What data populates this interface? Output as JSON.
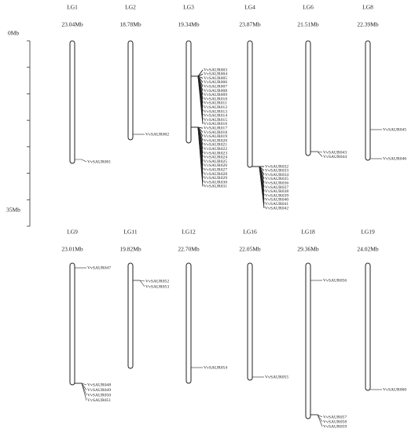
{
  "scale": {
    "top": "0Mb",
    "bottom": "35Mb"
  },
  "chromosomes": [
    {
      "name": "LG1",
      "length": "23.04Mb",
      "genes": [
        "VvSAUR001"
      ]
    },
    {
      "name": "LG2",
      "length": "18.78Mb",
      "genes": [
        "VvSAUR002"
      ]
    },
    {
      "name": "LG3",
      "length": "19.34Mb",
      "genes": [
        "VvSAUR003",
        "VvSAUR004",
        "VvSAUR005",
        "VvSAUR006",
        "VvSAUR007",
        "VvSAUR008",
        "VvSAUR009",
        "VvSAUR010",
        "VvSAUR011",
        "VvSAUR012",
        "VvSAUR013",
        "VvSAUR014",
        "VvSAUR015",
        "VvSAUR016",
        "VvSAUR017",
        "VvSAUR018",
        "VvSAUR019",
        "VvSAUR020",
        "VvSAUR021",
        "VvSAUR022",
        "VvSAUR023",
        "VvSAUR024",
        "VvSAUR025",
        "VvSAUR026",
        "VvSAUR027",
        "VvSAUR028",
        "VvSAUR029",
        "VvSAUR030",
        "VvSAUR031"
      ]
    },
    {
      "name": "LG4",
      "length": "23.87Mb",
      "genes": [
        "VvSAUR032",
        "VvSAUR033",
        "VvSAUR034",
        "VvSAUR035",
        "VvSAUR036",
        "VvSAUR037",
        "VvSAUR038",
        "VvSAUR039",
        "VvSAUR040",
        "VvSAUR041",
        "VvSAUR042"
      ]
    },
    {
      "name": "LG6",
      "length": "21.51Mb",
      "genes": [
        "VvSAUR043",
        "VvSAUR044"
      ]
    },
    {
      "name": "LG8",
      "length": "22.39Mb",
      "genes": [
        "VvSAUR045",
        "VvSAUR046"
      ]
    },
    {
      "name": "LG9",
      "length": "23.01Mb",
      "genes": [
        "VvSAUR047",
        "VvSAUR048",
        "VvSAUR049",
        "VvSAUR050",
        "VvSAUR051"
      ]
    },
    {
      "name": "LG11",
      "length": "19.82Mb",
      "genes": [
        "VvSAUR052",
        "VvSAUR053"
      ]
    },
    {
      "name": "LG12",
      "length": "22.70Mb",
      "genes": [
        "VvSAUR054"
      ]
    },
    {
      "name": "LG16",
      "length": "22.05Mb",
      "genes": [
        "VvSAUR055"
      ]
    },
    {
      "name": "LG18",
      "length": "29.36Mb",
      "genes": [
        "VvSAUR056",
        "VvSAUR057",
        "VvSAUR058",
        "VvSAUR059"
      ]
    },
    {
      "name": "LG19",
      "length": "24.02Mb",
      "genes": [
        "VvSAUR060"
      ]
    }
  ]
}
